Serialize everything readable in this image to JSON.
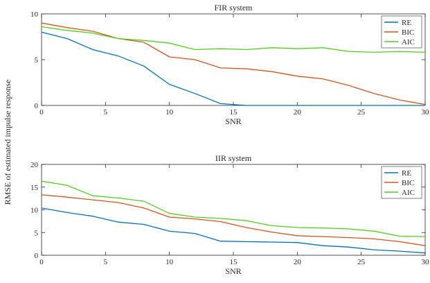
{
  "figure": {
    "shared_ylabel": "RMSE of estimated impulse response"
  },
  "chart_data": [
    {
      "type": "line",
      "title": "FIR system",
      "xlabel": "SNR",
      "ylabel": "",
      "xlim": [
        0,
        30
      ],
      "ylim": [
        0,
        10
      ],
      "xticks": [
        0,
        5,
        10,
        15,
        20,
        25,
        30
      ],
      "yticks": [
        0,
        5,
        10
      ],
      "grid": false,
      "legend": "top-right",
      "x": [
        0,
        2,
        4,
        6,
        8,
        10,
        12,
        14,
        16,
        18,
        20,
        22,
        24,
        26,
        28,
        30
      ],
      "series": [
        {
          "name": "RE",
          "color": "#0072BD",
          "values": [
            8.0,
            7.3,
            6.1,
            5.4,
            4.3,
            2.3,
            1.3,
            0.2,
            0.0,
            0.0,
            0.0,
            0.0,
            0.0,
            0.0,
            0.0,
            0.0
          ]
        },
        {
          "name": "BIC",
          "color": "#D95319",
          "values": [
            9.0,
            8.5,
            8.1,
            7.3,
            6.9,
            5.3,
            5.0,
            4.1,
            4.0,
            3.7,
            3.2,
            2.9,
            2.2,
            1.3,
            0.6,
            0.1
          ]
        },
        {
          "name": "AIC",
          "color": "#4FD11A",
          "values": [
            8.6,
            8.2,
            7.9,
            7.3,
            7.1,
            6.8,
            6.1,
            6.2,
            6.1,
            6.3,
            6.2,
            6.3,
            5.9,
            5.8,
            5.9,
            5.8
          ]
        }
      ]
    },
    {
      "type": "line",
      "title": "IIR system",
      "xlabel": "SNR",
      "ylabel": "",
      "xlim": [
        0,
        30
      ],
      "ylim": [
        0,
        20
      ],
      "xticks": [
        0,
        5,
        10,
        15,
        20,
        25,
        30
      ],
      "yticks": [
        0,
        5,
        10,
        15,
        20
      ],
      "grid": false,
      "legend": "top-right",
      "x": [
        0,
        2,
        4,
        6,
        8,
        10,
        12,
        14,
        16,
        18,
        20,
        22,
        24,
        26,
        28,
        30
      ],
      "series": [
        {
          "name": "RE",
          "color": "#0072BD",
          "values": [
            10.4,
            9.4,
            8.6,
            7.3,
            6.8,
            5.3,
            4.8,
            3.1,
            3.0,
            2.9,
            2.8,
            2.1,
            1.8,
            1.2,
            0.9,
            0.5
          ]
        },
        {
          "name": "BIC",
          "color": "#D95319",
          "values": [
            13.3,
            12.8,
            12.2,
            11.6,
            10.4,
            8.4,
            8.0,
            7.4,
            6.1,
            5.1,
            4.3,
            4.1,
            3.9,
            3.6,
            3.0,
            2.1
          ]
        },
        {
          "name": "AIC",
          "color": "#4FD11A",
          "values": [
            16.3,
            15.4,
            13.1,
            12.6,
            11.9,
            9.2,
            8.4,
            8.1,
            7.6,
            6.5,
            6.1,
            6.0,
            5.8,
            5.3,
            4.2,
            4.1
          ]
        }
      ]
    }
  ]
}
